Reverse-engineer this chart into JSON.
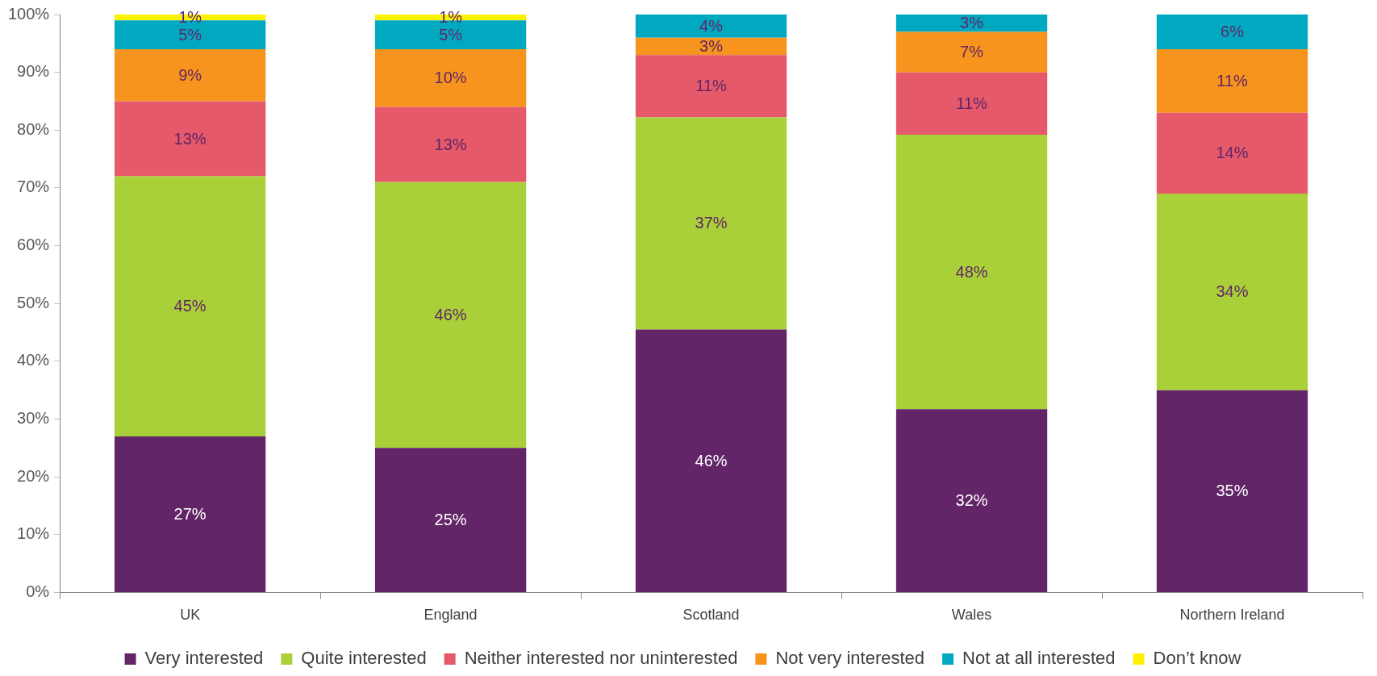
{
  "chart_data": {
    "type": "bar",
    "stacked": true,
    "categories": [
      "UK",
      "England",
      "Scotland",
      "Wales",
      "Northern Ireland"
    ],
    "series": [
      {
        "name": "Very interested",
        "color": "#622567",
        "values": [
          27,
          25,
          45.5,
          31.7,
          35
        ],
        "value_labels": [
          "27%",
          "25%",
          "46%",
          "32%",
          "35%"
        ]
      },
      {
        "name": "Quite interested",
        "color": "#a9d038",
        "values": [
          45,
          46,
          36.7,
          47.5,
          34
        ],
        "value_labels": [
          "45%",
          "46%",
          "37%",
          "48%",
          "34%"
        ]
      },
      {
        "name": "Neither interested nor uninterested",
        "color": "#e5596a",
        "values": [
          13,
          13,
          10.8,
          10.8,
          14
        ],
        "value_labels": [
          "13%",
          "13%",
          "11%",
          "11%",
          "14%"
        ]
      },
      {
        "name": "Not very interested",
        "color": "#f7941d",
        "values": [
          9,
          10,
          3,
          7,
          11
        ],
        "value_labels": [
          "9%",
          "10%",
          "3%",
          "7%",
          "11%"
        ]
      },
      {
        "name": "Not at all interested",
        "color": "#00a9c0",
        "values": [
          5,
          5,
          4,
          3,
          6
        ],
        "value_labels": [
          "5%",
          "5%",
          "4%",
          "3%",
          "6%"
        ]
      },
      {
        "name": "Don’t know",
        "color": "#fff200",
        "values": [
          1,
          1,
          null,
          null,
          null
        ],
        "value_labels": [
          "1%",
          "1%",
          null,
          null,
          null
        ]
      }
    ],
    "ylim": [
      0,
      100
    ],
    "yticks": [
      {
        "value": 0,
        "label": "0%"
      },
      {
        "value": 10,
        "label": "10%"
      },
      {
        "value": 20,
        "label": "20%"
      },
      {
        "value": 30,
        "label": "30%"
      },
      {
        "value": 40,
        "label": "40%"
      },
      {
        "value": 50,
        "label": "50%"
      },
      {
        "value": 60,
        "label": "60%"
      },
      {
        "value": 70,
        "label": "70%"
      },
      {
        "value": 80,
        "label": "80%"
      },
      {
        "value": 90,
        "label": "90%"
      },
      {
        "value": 100,
        "label": "100%"
      }
    ],
    "grid": false,
    "legend": "bottom"
  }
}
